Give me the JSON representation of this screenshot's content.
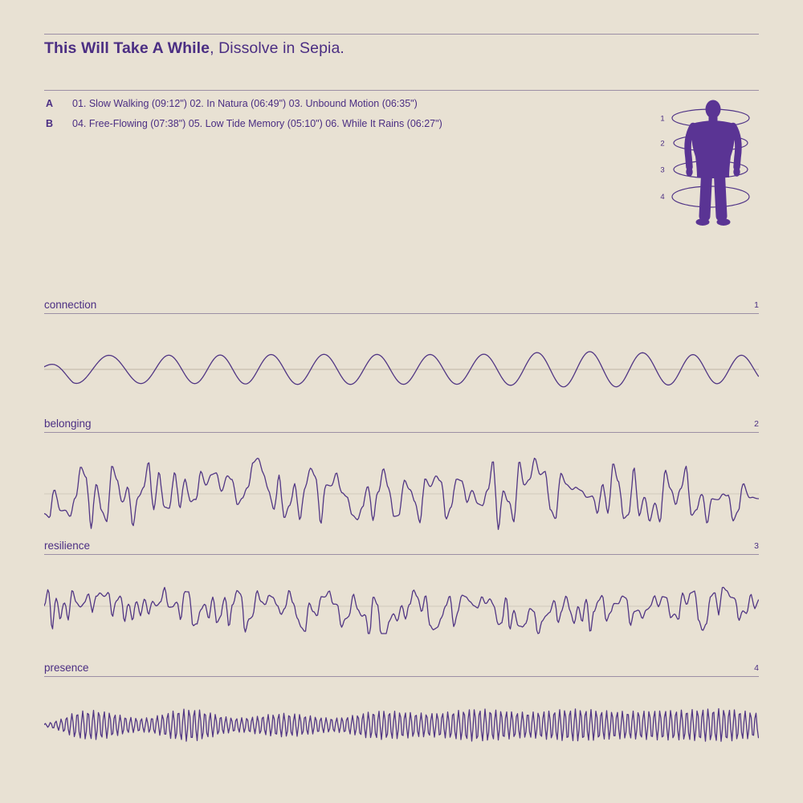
{
  "colors": {
    "background": "#e8e1d3",
    "ink": "#4b2e83",
    "body_fill": "#5a3494",
    "rule": "#9c8fa5",
    "wave_stroke": "#513684",
    "centerline_strong": "#c6beae",
    "centerline_faint": "#d0c9bb"
  },
  "header": {
    "title_bold": "This Will Take A While",
    "title_rest": ", Dissolve in Sepia."
  },
  "tracklist": [
    {
      "side": "A",
      "tracks": "01. Slow Walking (09:12\") 02. In Natura (06:49\") 03. Unbound Motion (06:35\")"
    },
    {
      "side": "B",
      "tracks": "04. Free-Flowing (07:38\") 05. Low Tide Memory (05:10\") 06. While It Rains (06:27\")"
    }
  ],
  "figure": {
    "rings": [
      {
        "num": "1"
      },
      {
        "num": "2"
      },
      {
        "num": "3"
      },
      {
        "num": "4"
      }
    ]
  },
  "sections": [
    {
      "label": "connection",
      "num": "1",
      "wave": {
        "kind": "carrier",
        "seed": 11,
        "period": 66,
        "amp": 23,
        "phase_jitter": 1.5,
        "phase_step": 150,
        "env_base": 0.75,
        "env_var": 0.3,
        "env_step": 170,
        "clamp": [
          -46,
          46
        ],
        "centerline": "strong"
      }
    },
    {
      "label": "belonging",
      "num": "2",
      "wave": {
        "kind": "spiky",
        "seed": 23,
        "amp": 42,
        "step": 6.5,
        "power": 1.3,
        "amp2": 10,
        "step2": 24,
        "neg_gain": 1.0,
        "clamp": [
          -46,
          46
        ],
        "centerline": "faint"
      }
    },
    {
      "label": "resilience",
      "num": "3",
      "wave": {
        "kind": "spiky",
        "seed": 37,
        "amp": 21,
        "step": 5,
        "power": 1.15,
        "amp2": 6,
        "step2": 15,
        "neg_gain": 1.55,
        "clamp": [
          -34,
          25
        ],
        "centerline": "faint"
      }
    },
    {
      "label": "presence",
      "num": "4",
      "wave": {
        "kind": "carrier",
        "seed": 53,
        "period": 6.6,
        "amp": 20,
        "phase_jitter": 0.9,
        "phase_step": 90,
        "env_base": 0.72,
        "env_var": 0.32,
        "env_step": 60,
        "clamp": [
          -35,
          35
        ],
        "centerline": "none"
      }
    }
  ]
}
